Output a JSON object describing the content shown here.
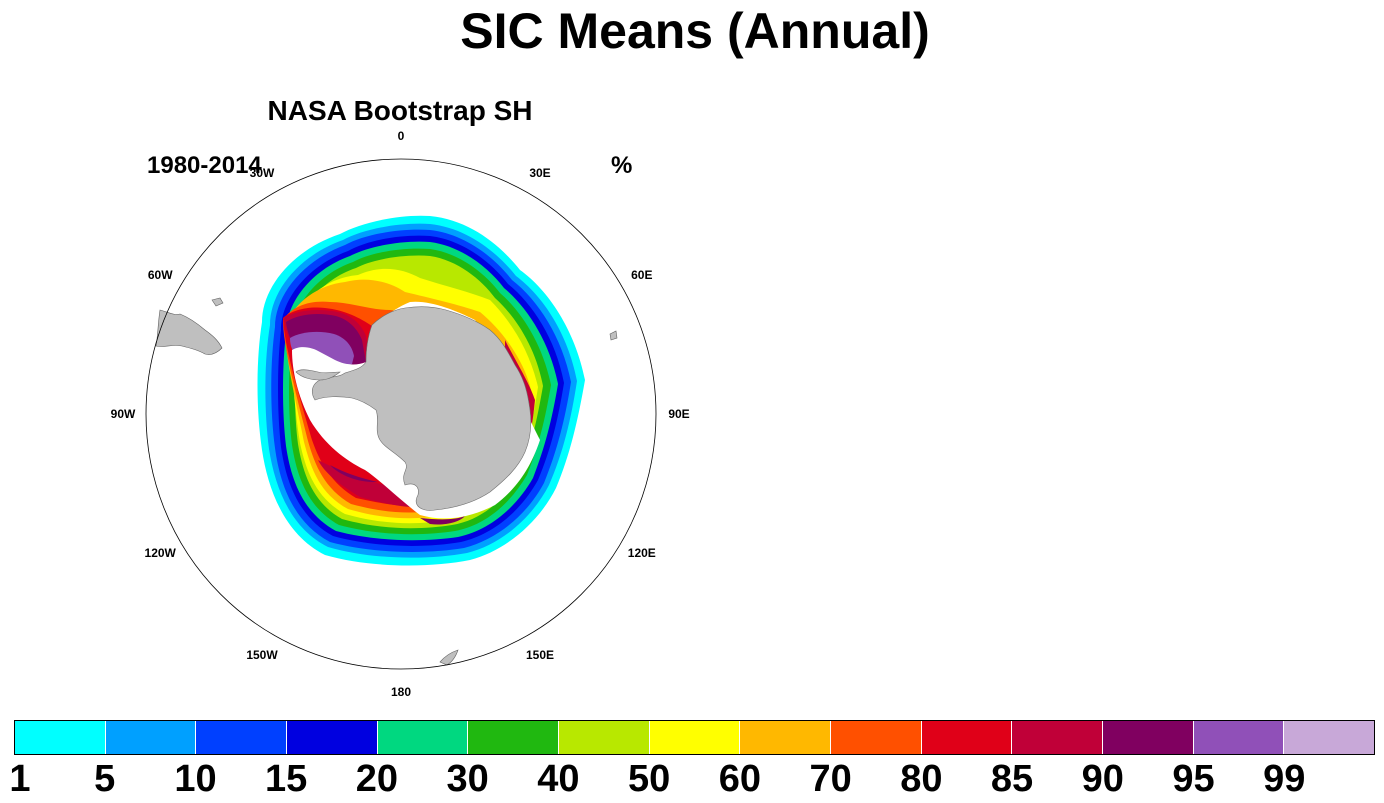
{
  "figure": {
    "title": "SIC Means (Annual)",
    "subtitle": "NASA Bootstrap SH",
    "left_string": "1980-2014",
    "right_string": "%"
  },
  "map": {
    "projection": "south-polar-stereographic",
    "land_color": "#bfbfbf",
    "longitude_labels": [
      {
        "lon": 0,
        "text": "0"
      },
      {
        "lon": 30,
        "text": "30E"
      },
      {
        "lon": 60,
        "text": "60E"
      },
      {
        "lon": 90,
        "text": "90E"
      },
      {
        "lon": 120,
        "text": "120E"
      },
      {
        "lon": 150,
        "text": "150E"
      },
      {
        "lon": 180,
        "text": "180"
      },
      {
        "lon": -150,
        "text": "150W"
      },
      {
        "lon": -120,
        "text": "120W"
      },
      {
        "lon": -90,
        "text": "90W"
      },
      {
        "lon": -60,
        "text": "60W"
      },
      {
        "lon": -30,
        "text": "30W"
      }
    ]
  },
  "colorbar": {
    "colors": [
      "#00ffff",
      "#00a0ff",
      "#0040ff",
      "#0000e0",
      "#00d880",
      "#20b810",
      "#b8e800",
      "#ffff00",
      "#ffb800",
      "#ff5000",
      "#e00018",
      "#c00038",
      "#800060",
      "#9050b8",
      "#c8a8d8"
    ],
    "labels": [
      "1",
      "5",
      "10",
      "15",
      "20",
      "30",
      "40",
      "50",
      "60",
      "70",
      "80",
      "85",
      "90",
      "95",
      "99"
    ]
  }
}
